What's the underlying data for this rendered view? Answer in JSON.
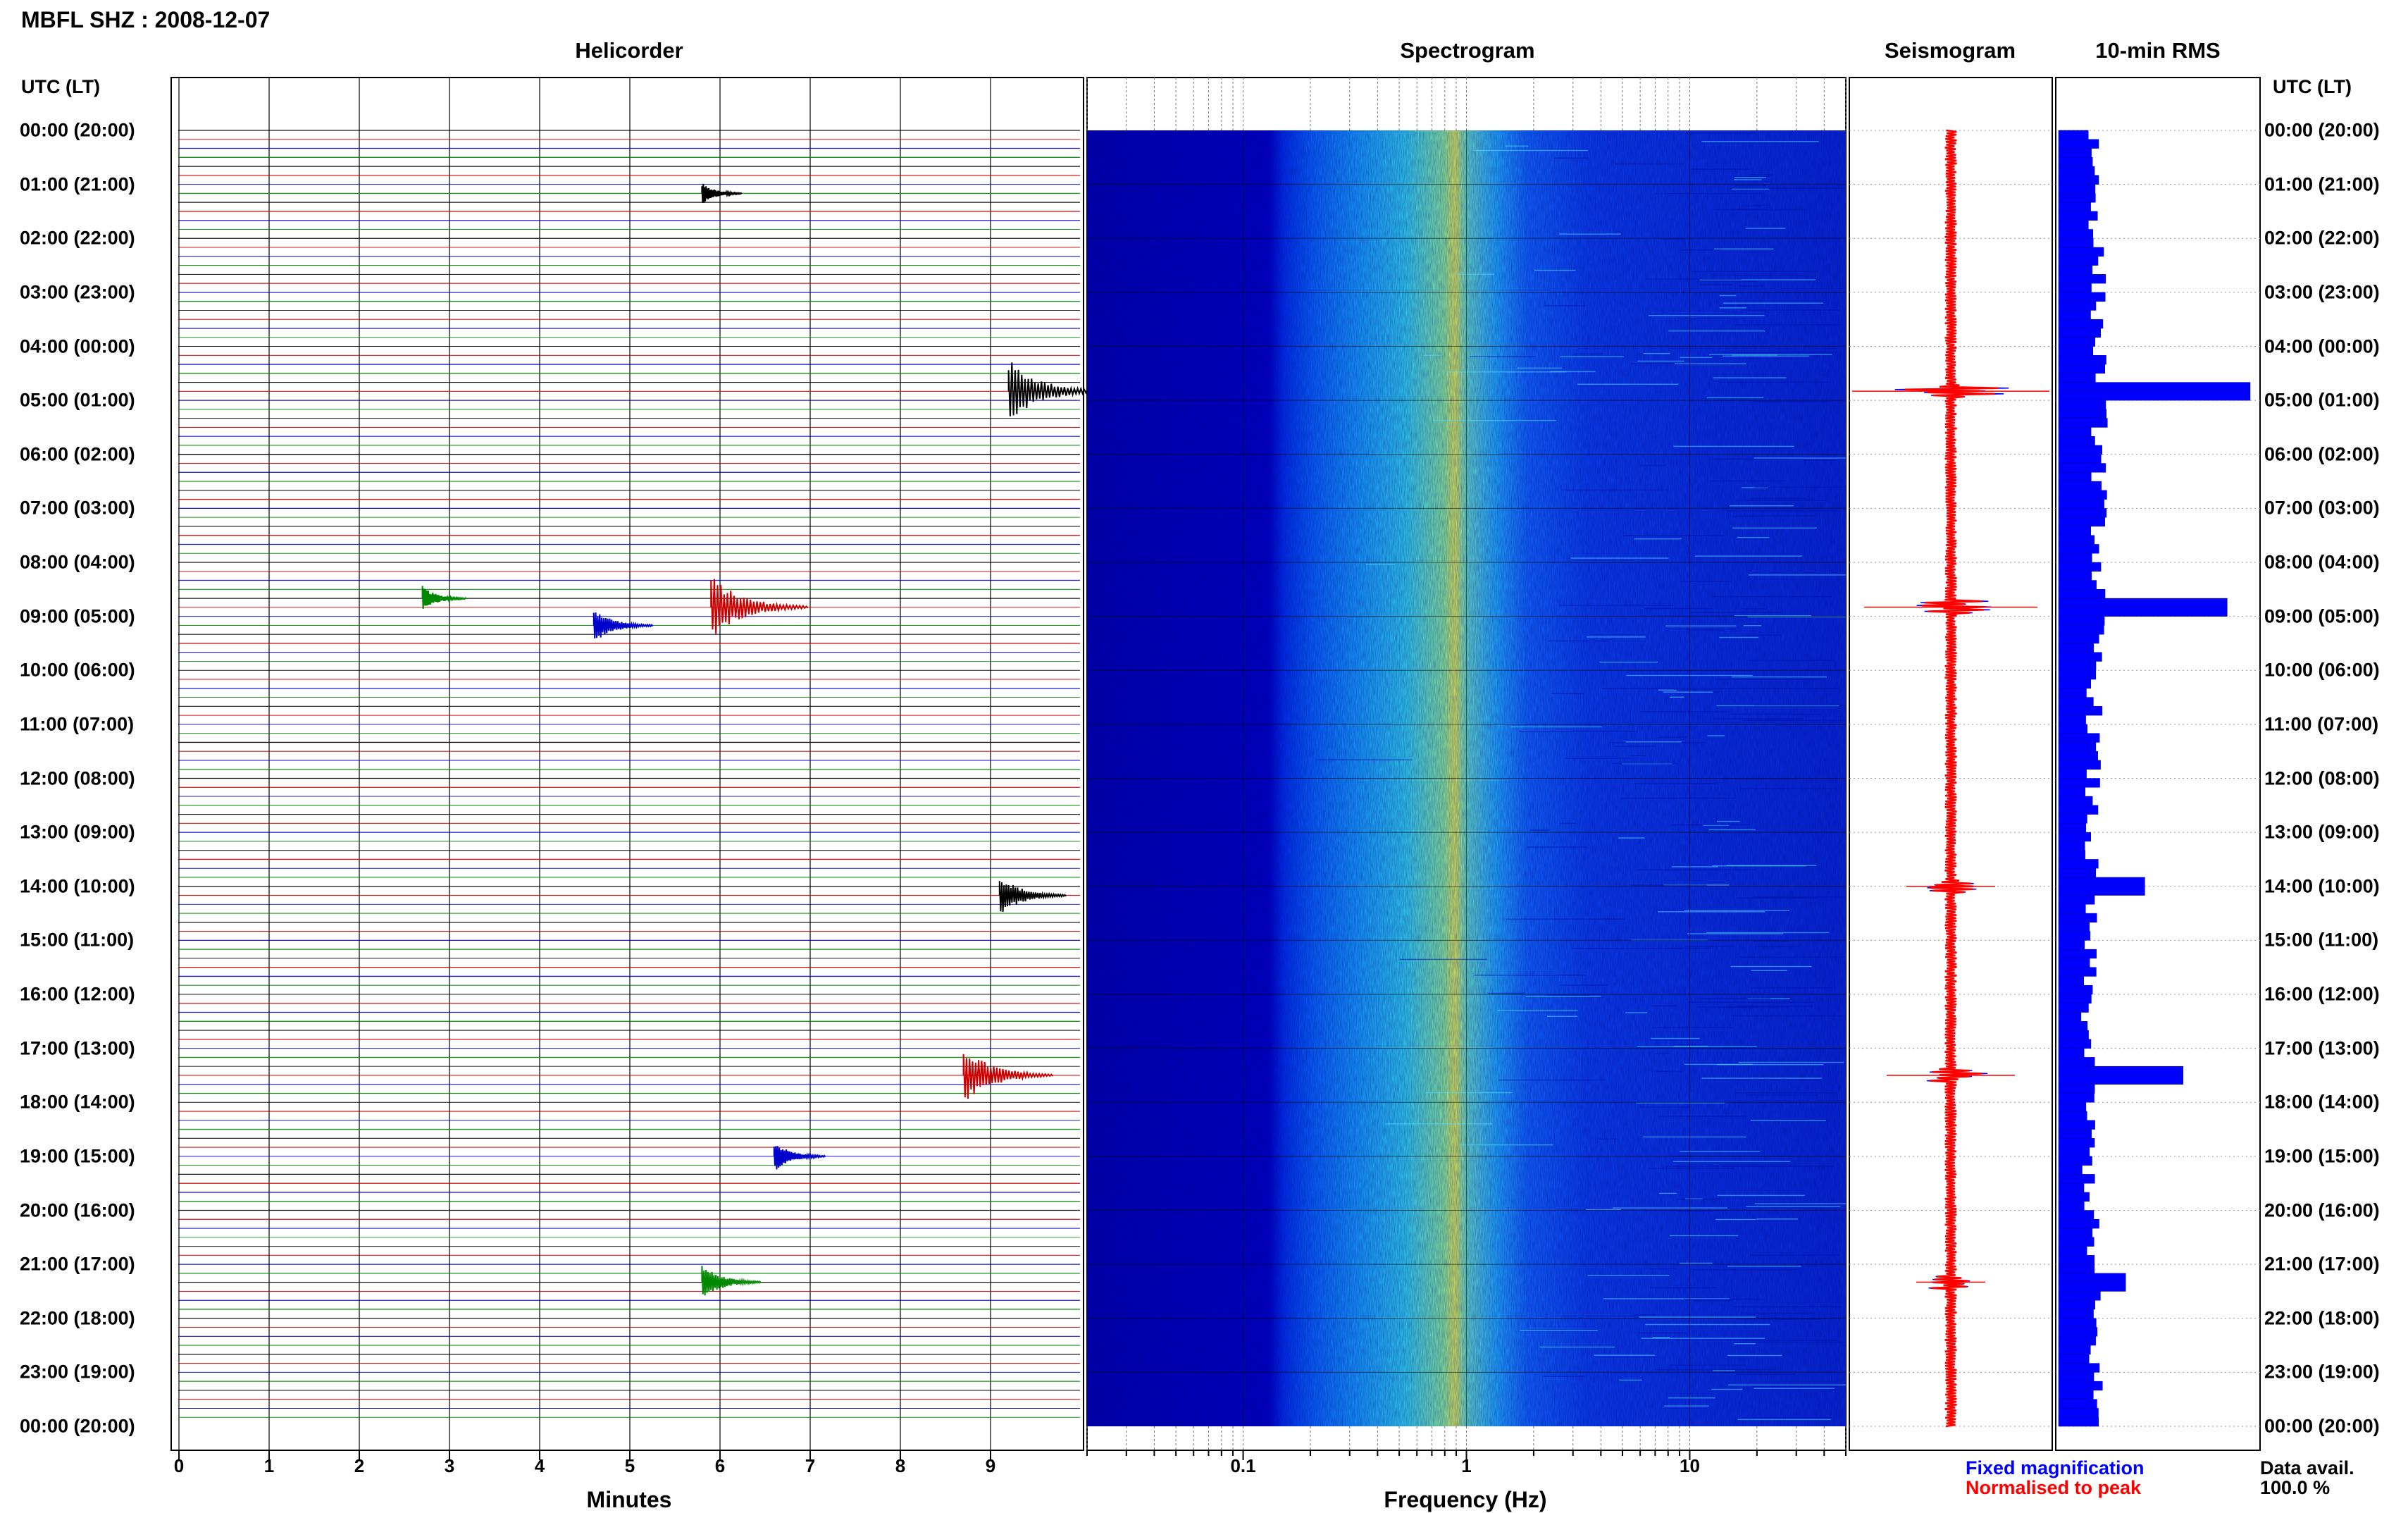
{
  "header": {
    "station_title": "MBFL SHZ : 2008-12-07"
  },
  "panels": {
    "helicorder": "Helicorder",
    "spectrogram": "Spectrogram",
    "seismogram": "Seismogram",
    "rms": "10-min RMS"
  },
  "axes": {
    "time_header_left": "UTC (LT)",
    "time_header_right": "UTC (LT)",
    "helicorder_xlabel": "Minutes",
    "spectrogram_xlabel": "Frequency (Hz)",
    "minute_ticks": [
      "0",
      "1",
      "2",
      "3",
      "4",
      "5",
      "6",
      "7",
      "8",
      "9"
    ],
    "freq_ticks": [
      "0.1",
      "1",
      "10"
    ]
  },
  "legend": {
    "fixed": "Fixed magnification",
    "normalised": "Normalised to peak",
    "fixed_color": "#0000ff",
    "normalised_color": "#ff0000"
  },
  "data_avail": {
    "label": "Data avail.",
    "value": "100.0 %"
  },
  "colors": {
    "trace_cycle": [
      "#000000",
      "#cc0000",
      "#0000cc",
      "#008800"
    ],
    "rms_bar": "#0000ff",
    "spectrogram_low": "#0000aa",
    "spectrogram_peak": "#ffff00"
  },
  "chart_data": {
    "type": "heatmap",
    "title": "MBFL SHZ : 2008-12-07",
    "time_labels": [
      "00:00 (20:00)",
      "01:00 (21:00)",
      "02:00 (22:00)",
      "03:00 (23:00)",
      "04:00 (00:00)",
      "05:00 (01:00)",
      "06:00 (02:00)",
      "07:00 (03:00)",
      "08:00 (04:00)",
      "09:00 (05:00)",
      "10:00 (06:00)",
      "11:00 (07:00)",
      "12:00 (08:00)",
      "13:00 (09:00)",
      "14:00 (10:00)",
      "15:00 (11:00)",
      "16:00 (12:00)",
      "17:00 (13:00)",
      "18:00 (14:00)",
      "19:00 (15:00)",
      "20:00 (16:00)",
      "21:00 (17:00)",
      "22:00 (18:00)",
      "23:00 (19:00)",
      "00:00 (20:00)"
    ],
    "helicorder": {
      "xlabel": "Minutes",
      "xlim": [
        0,
        10
      ],
      "line_interval_minutes": 10,
      "events": [
        {
          "utc_hour": 4.83,
          "minute": 9.2,
          "amplitude": 1.0
        },
        {
          "utc_hour": 8.83,
          "minute": 5.9,
          "amplitude": 1.0
        },
        {
          "utc_hour": 9.17,
          "minute": 4.6,
          "amplitude": 0.5
        },
        {
          "utc_hour": 8.67,
          "minute": 2.7,
          "amplitude": 0.3
        },
        {
          "utc_hour": 14.17,
          "minute": 9.1,
          "amplitude": 0.6
        },
        {
          "utc_hour": 17.5,
          "minute": 8.7,
          "amplitude": 0.9
        },
        {
          "utc_hour": 19.0,
          "minute": 6.6,
          "amplitude": 0.4
        },
        {
          "utc_hour": 21.33,
          "minute": 5.8,
          "amplitude": 0.5
        },
        {
          "utc_hour": 1.17,
          "minute": 5.8,
          "amplitude": 0.25
        }
      ]
    },
    "spectrogram": {
      "xlabel": "Frequency (Hz)",
      "xscale": "log",
      "xlim": [
        0.02,
        50
      ],
      "peak_frequency_hz": 1.0
    },
    "rms": {
      "title": "10-min RMS",
      "peaks": [
        {
          "utc_hour": 4.83,
          "relative": 1.0
        },
        {
          "utc_hour": 8.83,
          "relative": 0.88
        },
        {
          "utc_hour": 17.5,
          "relative": 0.65
        },
        {
          "utc_hour": 14.0,
          "relative": 0.45
        },
        {
          "utc_hour": 21.33,
          "relative": 0.35
        }
      ]
    }
  }
}
